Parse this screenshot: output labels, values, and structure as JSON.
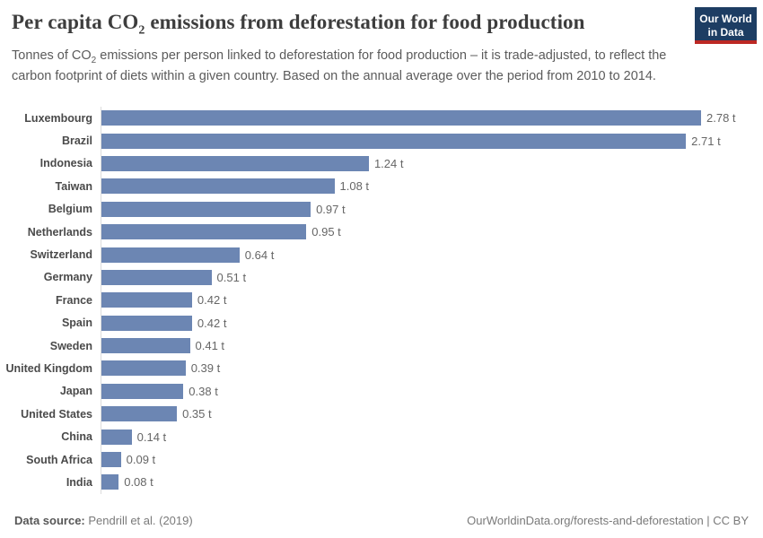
{
  "header": {
    "title": {
      "pre": "Per capita CO",
      "sub": "2",
      "post": " emissions from deforestation for food production"
    },
    "subtitle": {
      "pre": "Tonnes of CO",
      "sub": "2",
      "post": " emissions per person linked to deforestation for food production – it is trade-adjusted, to reflect the carbon footprint of diets within a given country. Based on the annual average over the period from 2010 to 2014."
    },
    "logo": {
      "line1": "Our World",
      "line2": "in Data"
    }
  },
  "chart_data": {
    "type": "bar",
    "orientation": "horizontal",
    "title": "Per capita CO2 emissions from deforestation for food production",
    "subtitle": "Tonnes of CO2 emissions per person linked to deforestation for food production – it is trade-adjusted, to reflect the carbon footprint of diets within a given country. Based on the annual average over the period from 2010 to 2014.",
    "categories": [
      "Luxembourg",
      "Brazil",
      "Indonesia",
      "Taiwan",
      "Belgium",
      "Netherlands",
      "Switzerland",
      "Germany",
      "France",
      "Spain",
      "Sweden",
      "United Kingdom",
      "Japan",
      "United States",
      "China",
      "South Africa",
      "India"
    ],
    "values": [
      2.78,
      2.71,
      1.24,
      1.08,
      0.97,
      0.95,
      0.64,
      0.51,
      0.42,
      0.42,
      0.41,
      0.39,
      0.38,
      0.35,
      0.14,
      0.09,
      0.08
    ],
    "value_labels": [
      "2.78 t",
      "2.71 t",
      "1.24 t",
      "1.08 t",
      "0.97 t",
      "0.95 t",
      "0.64 t",
      "0.51 t",
      "0.42 t",
      "0.42 t",
      "0.41 t",
      "0.39 t",
      "0.38 t",
      "0.35 t",
      "0.14 t",
      "0.09 t",
      "0.08 t"
    ],
    "unit": "t",
    "xlim": [
      0,
      2.78
    ],
    "grid": false,
    "legend": "none",
    "bar_color": "#6c86b3",
    "axis_line_color": "#dcdcdc"
  },
  "footer": {
    "datasource_label": "Data source:",
    "datasource_value": " Pendrill et al. (2019)",
    "right_note": "OurWorldinData.org/forests-and-deforestation | CC BY"
  },
  "colors": {
    "bar": "#6c86b3",
    "logo_bg": "#1d3d63",
    "logo_underline": "#bc2824",
    "title_text": "#3d3d3d",
    "subtitle_text": "#5b5b5b",
    "country_label": "#4a4a4a",
    "value_label": "#666666"
  }
}
